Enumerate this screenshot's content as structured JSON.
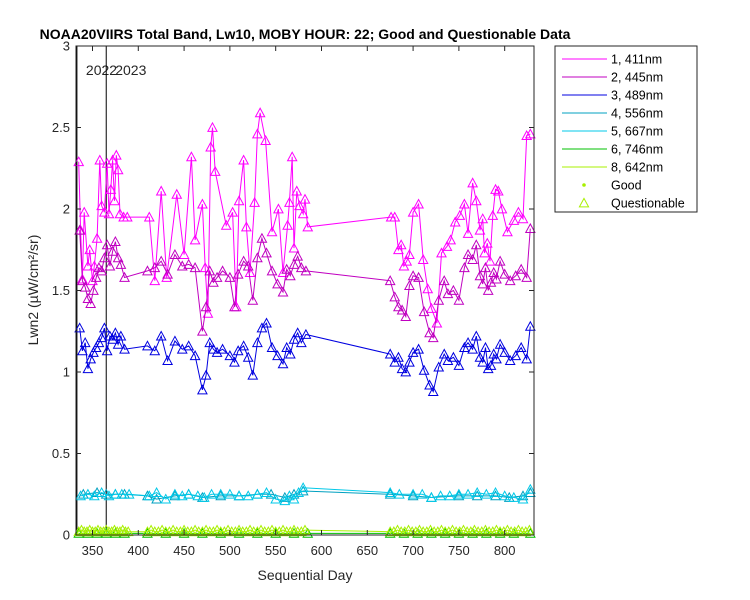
{
  "chart_data": {
    "type": "line",
    "title": "NOAA20VIIRS Total Band, Lw10, MOBY HOUR: 22;  Good and Questionable Data",
    "xlabel": "Sequential Day",
    "ylabel": "Lwn2 (µW/cm²/sr)",
    "xlim": [
      332,
      832
    ],
    "ylim": [
      0,
      3
    ],
    "xticks": [
      "350",
      "400",
      "450",
      "500",
      "550",
      "600",
      "650",
      "700",
      "750",
      "800"
    ],
    "yticks": [
      "0",
      "0.5",
      "1",
      "1.5",
      "2",
      "2.5",
      "3"
    ],
    "grid": false,
    "legend_position": "outside-top-right",
    "year_markers": [
      {
        "x": 333,
        "label": "2022"
      },
      {
        "x": 365,
        "label": "2023"
      }
    ],
    "series": [
      {
        "name": "1, 411nm",
        "color": "#ff00ff",
        "marker": "triangle",
        "x": [
          335,
          337,
          339,
          341,
          345,
          347,
          350,
          352,
          355,
          358,
          360,
          363,
          366,
          368,
          370,
          372,
          374,
          376,
          378,
          380,
          384,
          388,
          412,
          418,
          425,
          431,
          442,
          450,
          458,
          462,
          470,
          473,
          476,
          479,
          481,
          484,
          496,
          503,
          507,
          510,
          515,
          518,
          522,
          527,
          530,
          533,
          539,
          546,
          553,
          558,
          563,
          565,
          568,
          570,
          573,
          576,
          580,
          582,
          585,
          676,
          680,
          684,
          687,
          690,
          693,
          696,
          700,
          706,
          711,
          716,
          720,
          726,
          731,
          737,
          741,
          746,
          751,
          756,
          760,
          765,
          769,
          773,
          776,
          778,
          781,
          784,
          787,
          790,
          793,
          797,
          803,
          810,
          815,
          820,
          824,
          828
        ],
        "y": [
          2.29,
          1.87,
          1.57,
          1.98,
          1.65,
          1.75,
          1.56,
          1.65,
          1.82,
          2.3,
          2.02,
          1.98,
          2.28,
          1.97,
          2.12,
          2.3,
          2.05,
          2.33,
          2.24,
          1.97,
          1.95,
          1.95,
          1.95,
          1.56,
          2.11,
          1.58,
          2.09,
          1.72,
          2.32,
          1.81,
          2.03,
          1.64,
          1.36,
          2.38,
          2.5,
          2.23,
          1.9,
          1.98,
          1.4,
          2.05,
          2.3,
          1.89,
          1.61,
          2.04,
          2.46,
          2.59,
          2.42,
          1.86,
          2.0,
          1.61,
          1.9,
          2.04,
          2.32,
          1.76,
          2.11,
          2.02,
          1.97,
          2.06,
          1.89,
          1.95,
          1.95,
          1.75,
          1.78,
          1.65,
          1.68,
          1.72,
          1.98,
          2.03,
          1.69,
          1.51,
          1.39,
          1.3,
          1.73,
          1.77,
          1.81,
          1.92,
          1.96,
          2.03,
          1.85,
          2.16,
          2.05,
          1.87,
          1.94,
          1.73,
          1.79,
          1.68,
          1.96,
          2.12,
          2.11,
          2.0,
          1.86,
          1.93,
          1.98,
          1.94,
          2.45,
          2.46
        ]
      },
      {
        "name": "2, 445nm",
        "color": "#c000c0",
        "marker": "triangle",
        "x": [
          336,
          339,
          342,
          345,
          348,
          351,
          354,
          357,
          360,
          363,
          366,
          369,
          372,
          375,
          378,
          381,
          385,
          410,
          418,
          425,
          432,
          440,
          448,
          455,
          462,
          470,
          474,
          478,
          482,
          486,
          492,
          500,
          505,
          509,
          515,
          520,
          525,
          530,
          535,
          540,
          546,
          552,
          558,
          562,
          566,
          570,
          574,
          578,
          583,
          675,
          680,
          684,
          688,
          692,
          696,
          700,
          706,
          712,
          718,
          722,
          728,
          734,
          738,
          744,
          750,
          756,
          760,
          765,
          769,
          773,
          776,
          779,
          782,
          785,
          788,
          791,
          795,
          800,
          806,
          812,
          818,
          824,
          828
        ],
        "y": [
          1.87,
          1.56,
          1.52,
          1.45,
          1.42,
          1.5,
          1.58,
          1.64,
          1.62,
          1.7,
          1.78,
          1.65,
          1.74,
          1.8,
          1.7,
          1.66,
          1.58,
          1.62,
          1.64,
          1.68,
          1.6,
          1.72,
          1.65,
          1.66,
          1.64,
          1.25,
          1.4,
          1.62,
          1.55,
          1.58,
          1.62,
          1.58,
          1.4,
          1.6,
          1.68,
          1.65,
          1.44,
          1.7,
          1.82,
          1.73,
          1.62,
          1.54,
          1.49,
          1.63,
          1.59,
          1.66,
          1.71,
          1.64,
          1.62,
          1.56,
          1.46,
          1.4,
          1.38,
          1.34,
          1.53,
          1.59,
          1.58,
          1.37,
          1.24,
          1.21,
          1.44,
          1.56,
          1.48,
          1.5,
          1.44,
          1.64,
          1.72,
          1.69,
          1.78,
          1.59,
          1.54,
          1.64,
          1.5,
          1.55,
          1.61,
          1.57,
          1.68,
          1.6,
          1.56,
          1.59,
          1.63,
          1.58,
          1.88
        ]
      },
      {
        "name": "3, 489nm",
        "color": "#0000e0",
        "marker": "triangle",
        "x": [
          336,
          339,
          342,
          345,
          348,
          351,
          354,
          357,
          360,
          363,
          366,
          369,
          372,
          375,
          378,
          381,
          385,
          410,
          418,
          425,
          432,
          440,
          448,
          455,
          462,
          470,
          474,
          478,
          482,
          486,
          492,
          500,
          505,
          509,
          515,
          520,
          525,
          530,
          535,
          540,
          546,
          552,
          558,
          562,
          566,
          570,
          574,
          578,
          583,
          675,
          680,
          684,
          688,
          692,
          696,
          700,
          706,
          712,
          718,
          722,
          728,
          734,
          738,
          744,
          750,
          756,
          760,
          765,
          769,
          773,
          776,
          779,
          782,
          785,
          788,
          791,
          795,
          800,
          806,
          812,
          818,
          824,
          828
        ],
        "y": [
          1.27,
          1.13,
          1.18,
          1.02,
          1.08,
          1.12,
          1.15,
          1.18,
          1.21,
          1.27,
          1.13,
          1.22,
          1.2,
          1.24,
          1.17,
          1.22,
          1.14,
          1.16,
          1.13,
          1.22,
          1.07,
          1.19,
          1.14,
          1.16,
          1.1,
          0.89,
          0.98,
          1.18,
          1.14,
          1.12,
          1.14,
          1.1,
          1.06,
          1.13,
          1.16,
          1.09,
          0.98,
          1.18,
          1.27,
          1.3,
          1.15,
          1.1,
          1.05,
          1.15,
          1.11,
          1.2,
          1.24,
          1.18,
          1.23,
          1.11,
          1.06,
          1.09,
          1.02,
          1.0,
          1.06,
          1.12,
          1.14,
          1.01,
          0.92,
          0.88,
          1.03,
          1.11,
          1.07,
          1.09,
          1.04,
          1.15,
          1.18,
          1.14,
          1.22,
          1.09,
          1.06,
          1.15,
          1.02,
          1.04,
          1.11,
          1.08,
          1.17,
          1.12,
          1.07,
          1.1,
          1.15,
          1.08,
          1.28
        ]
      },
      {
        "name": "4, 556nm",
        "color": "#00a0c0",
        "marker": "triangle",
        "x": [
          340,
          355,
          365,
          375,
          385,
          410,
          420,
          440,
          455,
          470,
          490,
          510,
          530,
          545,
          560,
          570,
          580,
          675,
          700,
          720,
          750,
          770,
          790,
          805,
          820,
          828
        ],
        "y": [
          0.25,
          0.26,
          0.25,
          0.25,
          0.25,
          0.24,
          0.22,
          0.24,
          0.25,
          0.23,
          0.24,
          0.24,
          0.25,
          0.25,
          0.23,
          0.25,
          0.27,
          0.25,
          0.24,
          0.23,
          0.24,
          0.24,
          0.24,
          0.23,
          0.24,
          0.26
        ]
      },
      {
        "name": "5, 667nm",
        "color": "#00c8e8",
        "marker": "triangle",
        "x": [
          337,
          345,
          352,
          360,
          368,
          375,
          382,
          390,
          412,
          420,
          430,
          440,
          448,
          455,
          465,
          472,
          480,
          490,
          500,
          510,
          520,
          530,
          540,
          550,
          560,
          565,
          570,
          575,
          580,
          675,
          685,
          700,
          710,
          720,
          730,
          740,
          750,
          760,
          770,
          780,
          790,
          800,
          810,
          820,
          828
        ],
        "y": [
          0.24,
          0.25,
          0.24,
          0.26,
          0.24,
          0.25,
          0.25,
          0.25,
          0.24,
          0.26,
          0.22,
          0.25,
          0.24,
          0.25,
          0.24,
          0.23,
          0.25,
          0.25,
          0.25,
          0.24,
          0.24,
          0.25,
          0.26,
          0.22,
          0.21,
          0.24,
          0.22,
          0.26,
          0.29,
          0.26,
          0.25,
          0.25,
          0.25,
          0.23,
          0.24,
          0.24,
          0.25,
          0.25,
          0.26,
          0.25,
          0.26,
          0.24,
          0.23,
          0.22,
          0.28
        ]
      },
      {
        "name": "6, 746nm",
        "color": "#00c000",
        "marker": "triangle",
        "x": [
          335,
          345,
          355,
          365,
          375,
          385,
          410,
          430,
          450,
          470,
          490,
          510,
          530,
          550,
          570,
          585,
          675,
          690,
          705,
          720,
          735,
          750,
          765,
          780,
          795,
          810,
          828
        ],
        "y": [
          0.01,
          0.01,
          0.01,
          0.01,
          0.01,
          0.01,
          0.01,
          0.01,
          0.01,
          0.01,
          0.01,
          0.01,
          0.01,
          0.01,
          0.01,
          0.01,
          0.01,
          0.01,
          0.01,
          0.01,
          0.01,
          0.01,
          0.01,
          0.01,
          0.01,
          0.01,
          0.01
        ]
      },
      {
        "name": "8, 642nm",
        "color": "#a8f000",
        "marker": "triangle",
        "x": [
          335,
          338,
          341,
          344,
          347,
          350,
          353,
          356,
          359,
          362,
          365,
          368,
          371,
          374,
          377,
          380,
          383,
          386,
          389,
          410,
          414,
          418,
          422,
          426,
          430,
          434,
          438,
          442,
          446,
          450,
          454,
          458,
          462,
          466,
          470,
          474,
          478,
          482,
          486,
          490,
          494,
          498,
          502,
          506,
          510,
          514,
          518,
          522,
          526,
          530,
          534,
          538,
          542,
          546,
          550,
          554,
          558,
          562,
          566,
          570,
          574,
          578,
          582,
          675,
          679,
          683,
          687,
          691,
          695,
          699,
          703,
          707,
          711,
          715,
          719,
          723,
          727,
          731,
          735,
          739,
          743,
          747,
          751,
          755,
          759,
          763,
          767,
          771,
          775,
          779,
          783,
          787,
          791,
          795,
          799,
          803,
          807,
          811,
          815,
          819,
          823,
          827
        ],
        "y": [
          0.02,
          0.03,
          0.02,
          0.02,
          0.03,
          0.02,
          0.02,
          0.03,
          0.02,
          0.02,
          0.03,
          0.02,
          0.02,
          0.03,
          0.02,
          0.02,
          0.03,
          0.02,
          0.02,
          0.02,
          0.03,
          0.02,
          0.02,
          0.03,
          0.02,
          0.02,
          0.03,
          0.02,
          0.02,
          0.03,
          0.02,
          0.02,
          0.03,
          0.02,
          0.02,
          0.03,
          0.02,
          0.02,
          0.03,
          0.02,
          0.02,
          0.03,
          0.02,
          0.02,
          0.03,
          0.02,
          0.02,
          0.03,
          0.02,
          0.02,
          0.03,
          0.02,
          0.02,
          0.03,
          0.02,
          0.02,
          0.03,
          0.02,
          0.02,
          0.03,
          0.02,
          0.02,
          0.03,
          0.02,
          0.02,
          0.03,
          0.02,
          0.02,
          0.03,
          0.02,
          0.02,
          0.03,
          0.02,
          0.02,
          0.03,
          0.02,
          0.02,
          0.03,
          0.02,
          0.02,
          0.03,
          0.02,
          0.02,
          0.03,
          0.02,
          0.02,
          0.03,
          0.02,
          0.02,
          0.03,
          0.02,
          0.02,
          0.03,
          0.02,
          0.02,
          0.03,
          0.02,
          0.02,
          0.03,
          0.02,
          0.02,
          0.03
        ]
      }
    ],
    "legend": {
      "entries": [
        "1, 411nm",
        "2, 445nm",
        "3, 489nm",
        "4, 556nm",
        "5, 667nm",
        "6, 746nm",
        "8, 642nm"
      ],
      "good_label": "Good",
      "questionable_label": "Questionable",
      "good_color": "#a8f000",
      "questionable_color": "#a8f000"
    }
  }
}
